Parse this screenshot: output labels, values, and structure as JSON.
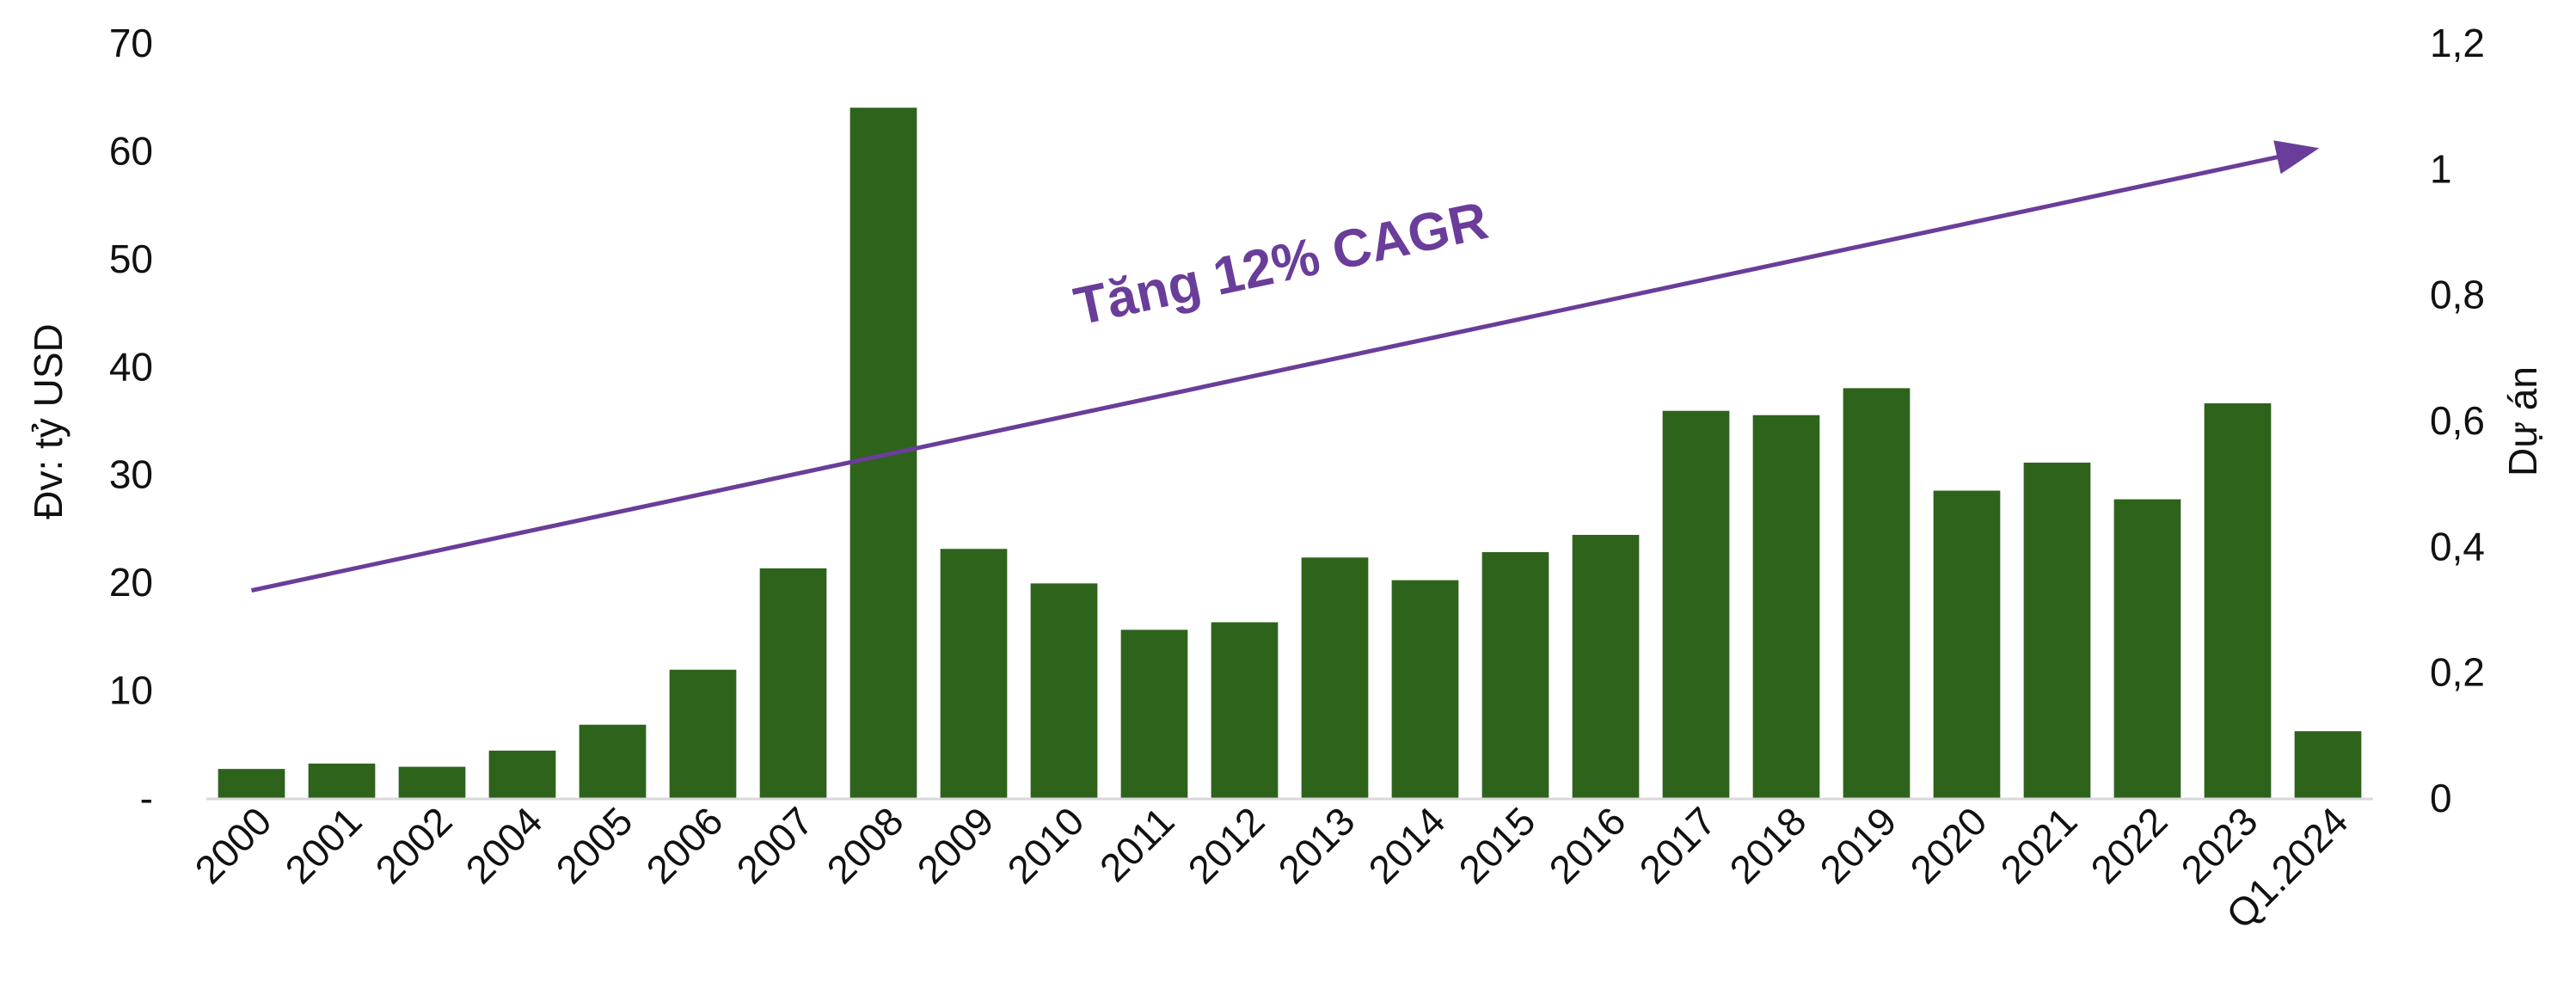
{
  "chart_data": {
    "type": "bar",
    "categories": [
      "2000",
      "2001",
      "2002",
      "2004",
      "2005",
      "2006",
      "2007",
      "2008",
      "2009",
      "2010",
      "2011",
      "2012",
      "2013",
      "2014",
      "2015",
      "2016",
      "2017",
      "2018",
      "2019",
      "2020",
      "2021",
      "2022",
      "2023",
      "Q1.2024"
    ],
    "series": [
      {
        "values": [
          2.7,
          3.2,
          2.9,
          4.4,
          6.8,
          11.9,
          21.3,
          64.0,
          23.1,
          19.9,
          15.6,
          16.3,
          22.3,
          20.2,
          22.8,
          24.4,
          35.9,
          35.5,
          38.0,
          28.5,
          31.1,
          27.7,
          36.6,
          6.2
        ],
        "color": "#2e631c"
      }
    ],
    "ylabel": "Đv: tỷ USD",
    "y2label": "Dự án",
    "ylim": [
      0,
      70
    ],
    "y2lim": [
      0,
      1.2
    ],
    "yticks": [
      "-",
      "10",
      "20",
      "30",
      "40",
      "50",
      "60",
      "70"
    ],
    "y2ticks": [
      "0",
      "0,2",
      "0,4",
      "0,6",
      "0,8",
      "1",
      "1,2"
    ],
    "annotation": {
      "text": "Tăng 12% CAGR",
      "color": "#6a3d9a",
      "trend_start_y2": 0.33,
      "trend_end_y2": 1.03
    },
    "grid": false,
    "legend": "none"
  }
}
